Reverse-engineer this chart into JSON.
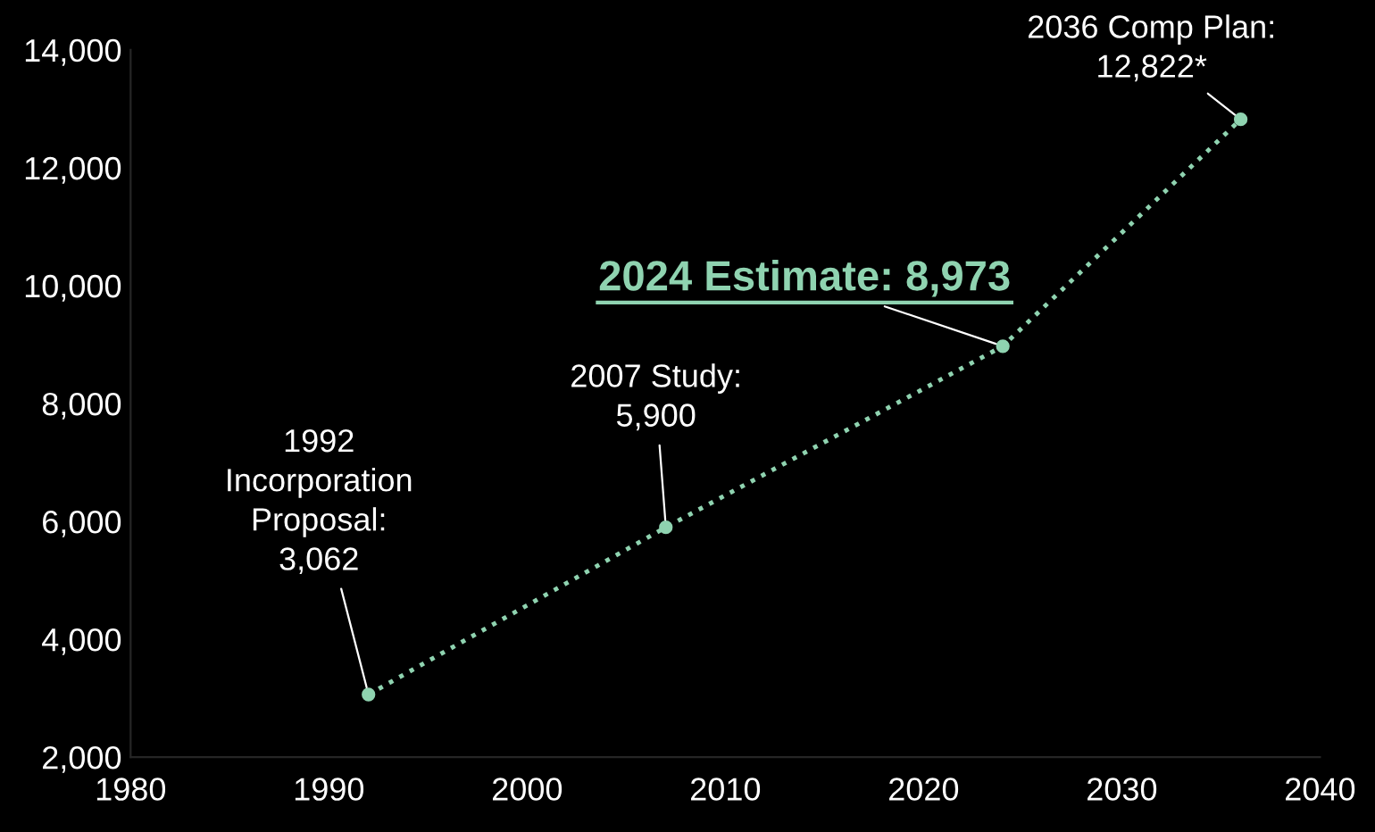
{
  "chart_data": {
    "type": "line",
    "x": [
      1992,
      2007,
      2024,
      2036
    ],
    "series": [
      {
        "color": "#8fd3b0",
        "values": [
          3062,
          5900,
          8973,
          12822
        ]
      }
    ],
    "marker": "circle",
    "line_style": "dotted",
    "grid": false,
    "legend": false,
    "xlim": [
      1980,
      2040
    ],
    "xticks": [
      1980,
      1990,
      2000,
      2010,
      2020,
      2030,
      2040
    ],
    "ylim": [
      2000,
      14000
    ],
    "yticks": [
      {
        "value": 2000,
        "label": "2,000"
      },
      {
        "value": 4000,
        "label": "4,000"
      },
      {
        "value": 6000,
        "label": "6,000"
      },
      {
        "value": 8000,
        "label": "8,000"
      },
      {
        "value": 10000,
        "label": "10,000"
      },
      {
        "value": 12000,
        "label": "12,000"
      },
      {
        "value": 14000,
        "label": "14,000"
      }
    ],
    "annotations": [
      {
        "text": "1992\nIncorporation\nProposal:\n3,062",
        "x": 1992,
        "y": 3062
      },
      {
        "text": "2007 Study:\n5,900",
        "x": 2007,
        "y": 5900
      },
      {
        "text": "2024 Estimate: 8,973",
        "x": 2024,
        "y": 8973
      },
      {
        "text": "2036 Comp Plan:\n12,822*",
        "x": 2036,
        "y": 12822
      }
    ]
  }
}
